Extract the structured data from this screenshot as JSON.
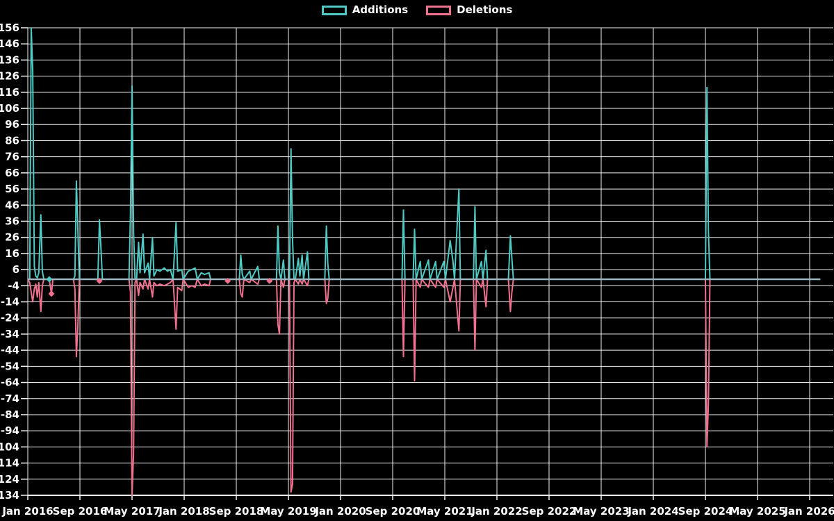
{
  "legend": {
    "items": [
      {
        "label": "Additions",
        "color": "#4ec9c3"
      },
      {
        "label": "Deletions",
        "color": "#f0708e"
      }
    ]
  },
  "colors": {
    "background": "#000000",
    "grid": "#f2f2f2",
    "axis_text": "#ffffff",
    "zero_line": "#9db5c0",
    "additions": "#4ec9c3",
    "deletions": "#f0708e"
  },
  "chart_data": {
    "type": "line",
    "title": "",
    "xlabel": "",
    "ylabel": "",
    "grid": true,
    "legend_position": "top-center",
    "x_axis": {
      "start": "2016-01",
      "end": "2026-01",
      "tick_labels": [
        "Jan 2016",
        "Sep 2016",
        "May 2017",
        "Jan 2018",
        "Sep 2018",
        "May 2019",
        "Jan 2020",
        "Sep 2020",
        "May 2021",
        "Jan 2022",
        "Sep 2022",
        "May 2023",
        "Jan 2024",
        "Sep 2024",
        "May 2025",
        "Jan 2026"
      ]
    },
    "y_axis": {
      "max": 156,
      "min": -134,
      "tick_step": 10,
      "tick_labels": [
        156,
        146,
        136,
        126,
        116,
        106,
        96,
        86,
        76,
        66,
        56,
        46,
        36,
        26,
        16,
        6,
        -4,
        -14,
        -24,
        -34,
        -44,
        -54,
        -64,
        -74,
        -84,
        -94,
        -104,
        -114,
        -124,
        -134
      ]
    },
    "series_names": [
      "Additions",
      "Deletions"
    ],
    "point_format": [
      "date",
      "additions",
      "deletions"
    ],
    "points": [
      [
        "2016-01-01",
        0,
        0
      ],
      [
        "2016-01-10",
        0,
        -2
      ],
      [
        "2016-01-17",
        156,
        -8
      ],
      [
        "2016-01-24",
        129,
        -14
      ],
      [
        "2016-02-01",
        8,
        -6
      ],
      [
        "2016-02-08",
        2,
        -3
      ],
      [
        "2016-02-15",
        1,
        -11
      ],
      [
        "2016-02-22",
        4,
        -2
      ],
      [
        "2016-03-01",
        40,
        -20
      ],
      [
        "2016-03-08",
        5,
        -4
      ],
      [
        "2016-03-15",
        0,
        0
      ],
      [
        "2016-04-10",
        0,
        0
      ],
      [
        "2016-04-20",
        0,
        -9
      ],
      [
        "2016-04-27",
        0,
        0
      ],
      [
        "2016-08-01",
        0,
        0
      ],
      [
        "2016-08-08",
        2,
        -6
      ],
      [
        "2016-08-15",
        61,
        -48
      ],
      [
        "2016-08-22",
        30,
        -28
      ],
      [
        "2016-08-29",
        0,
        0
      ],
      [
        "2016-11-24",
        0,
        0
      ],
      [
        "2016-12-01",
        37,
        -1
      ],
      [
        "2016-12-08",
        19,
        0
      ],
      [
        "2016-12-15",
        0,
        0
      ],
      [
        "2017-04-17",
        0,
        0
      ],
      [
        "2017-04-24",
        40,
        -8
      ],
      [
        "2017-05-01",
        120,
        -134
      ],
      [
        "2017-05-08",
        30,
        -108
      ],
      [
        "2017-05-15",
        0,
        -2
      ],
      [
        "2017-05-22",
        0,
        0
      ],
      [
        "2017-06-01",
        23,
        -10
      ],
      [
        "2017-06-08",
        4,
        -2
      ],
      [
        "2017-06-22",
        28,
        -6
      ],
      [
        "2017-06-29",
        4,
        0
      ],
      [
        "2017-07-15",
        10,
        -6
      ],
      [
        "2017-07-22",
        0,
        0
      ],
      [
        "2017-08-05",
        26,
        -11
      ],
      [
        "2017-08-12",
        2,
        -2
      ],
      [
        "2017-08-26",
        6,
        -4
      ],
      [
        "2017-09-09",
        5,
        -3
      ],
      [
        "2017-09-30",
        7,
        -4
      ],
      [
        "2017-10-14",
        5,
        -3
      ],
      [
        "2017-10-28",
        6,
        -2
      ],
      [
        "2017-11-10",
        0,
        0
      ],
      [
        "2017-11-24",
        35,
        -31
      ],
      [
        "2017-12-01",
        5,
        -5
      ],
      [
        "2017-12-20",
        6,
        -7
      ],
      [
        "2017-12-27",
        0,
        0
      ],
      [
        "2018-01-20",
        5,
        -5
      ],
      [
        "2018-02-06",
        6,
        -4
      ],
      [
        "2018-02-22",
        7,
        -5
      ],
      [
        "2018-03-01",
        0,
        0
      ],
      [
        "2018-03-20",
        4,
        -4
      ],
      [
        "2018-04-05",
        3,
        -3
      ],
      [
        "2018-04-26",
        4,
        -4
      ],
      [
        "2018-05-03",
        0,
        0
      ],
      [
        "2018-07-15",
        0,
        0
      ],
      [
        "2018-07-22",
        0,
        -1
      ],
      [
        "2018-07-29",
        0,
        0
      ],
      [
        "2018-09-15",
        0,
        0
      ],
      [
        "2018-09-22",
        15,
        -9
      ],
      [
        "2018-09-29",
        3,
        -11
      ],
      [
        "2018-10-06",
        0,
        0
      ],
      [
        "2018-11-03",
        5,
        -2
      ],
      [
        "2018-11-10",
        0,
        0
      ],
      [
        "2018-12-10",
        8,
        -3
      ],
      [
        "2018-12-17",
        0,
        0
      ],
      [
        "2019-01-28",
        0,
        0
      ],
      [
        "2019-02-04",
        0,
        -1
      ],
      [
        "2019-02-11",
        0,
        0
      ],
      [
        "2019-03-06",
        0,
        0
      ],
      [
        "2019-03-13",
        33,
        -28
      ],
      [
        "2019-03-20",
        4,
        -34
      ],
      [
        "2019-03-27",
        0,
        0
      ],
      [
        "2019-04-08",
        12,
        -5
      ],
      [
        "2019-04-15",
        0,
        0
      ],
      [
        "2019-05-06",
        0,
        0
      ],
      [
        "2019-05-13",
        81,
        -132
      ],
      [
        "2019-05-20",
        25,
        -127
      ],
      [
        "2019-05-27",
        0,
        -2
      ],
      [
        "2019-06-03",
        0,
        0
      ],
      [
        "2019-06-17",
        13,
        -3
      ],
      [
        "2019-06-24",
        2,
        0
      ],
      [
        "2019-07-04",
        15,
        -3
      ],
      [
        "2019-07-11",
        0,
        0
      ],
      [
        "2019-07-29",
        17,
        -4
      ],
      [
        "2019-08-05",
        0,
        0
      ],
      [
        "2019-10-19",
        0,
        0
      ],
      [
        "2019-10-26",
        33,
        -15
      ],
      [
        "2019-11-02",
        10,
        -12
      ],
      [
        "2019-11-09",
        0,
        0
      ],
      [
        "2020-10-14",
        0,
        0
      ],
      [
        "2020-10-21",
        43,
        -48
      ],
      [
        "2020-10-28",
        0,
        0
      ],
      [
        "2020-12-05",
        0,
        0
      ],
      [
        "2020-12-12",
        31,
        -63
      ],
      [
        "2020-12-19",
        0,
        0
      ],
      [
        "2021-01-08",
        11,
        -5
      ],
      [
        "2021-01-15",
        0,
        0
      ],
      [
        "2021-02-16",
        12,
        -5
      ],
      [
        "2021-02-23",
        0,
        0
      ],
      [
        "2021-03-19",
        11,
        -5
      ],
      [
        "2021-03-26",
        0,
        0
      ],
      [
        "2021-04-27",
        11,
        -5
      ],
      [
        "2021-05-04",
        0,
        0
      ],
      [
        "2021-05-26",
        24,
        -14
      ],
      [
        "2021-06-09",
        11,
        -5
      ],
      [
        "2021-06-16",
        0,
        0
      ],
      [
        "2021-07-06",
        56,
        -32
      ],
      [
        "2021-07-13",
        0,
        0
      ],
      [
        "2021-09-13",
        0,
        0
      ],
      [
        "2021-09-20",
        45,
        -44
      ],
      [
        "2021-09-27",
        0,
        0
      ],
      [
        "2021-10-20",
        11,
        -5
      ],
      [
        "2021-10-27",
        0,
        0
      ],
      [
        "2021-11-11",
        18,
        -17
      ],
      [
        "2021-11-18",
        0,
        0
      ],
      [
        "2022-02-24",
        0,
        0
      ],
      [
        "2022-03-03",
        27,
        -20
      ],
      [
        "2022-03-10",
        13,
        -8
      ],
      [
        "2022-03-17",
        0,
        0
      ],
      [
        "2024-09-01",
        0,
        0
      ],
      [
        "2024-09-08",
        119,
        -104
      ],
      [
        "2024-09-15",
        30,
        -77
      ],
      [
        "2024-09-22",
        0,
        0
      ],
      [
        "2026-02-20",
        0,
        0
      ]
    ],
    "isolated_point_markers": [
      {
        "series": "Additions",
        "date": "2016-04-10",
        "value": 0
      },
      {
        "series": "Deletions",
        "date": "2016-04-20",
        "value": -9
      },
      {
        "series": "Deletions",
        "date": "2016-12-01",
        "value": -1
      },
      {
        "series": "Deletions",
        "date": "2018-07-22",
        "value": -1
      },
      {
        "series": "Deletions",
        "date": "2019-02-04",
        "value": -1
      }
    ]
  }
}
